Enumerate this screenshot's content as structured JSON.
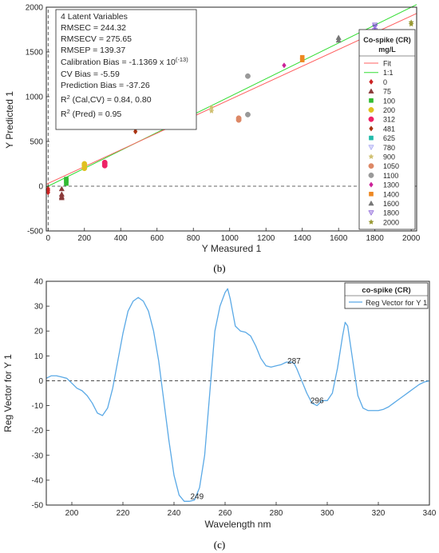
{
  "chart_data": [
    {
      "type": "scatter",
      "caption": "(b)",
      "xlabel": "Y Measured 1",
      "ylabel": "Y Predicted 1",
      "xlim": [
        -10,
        2030
      ],
      "ylim": [
        -500,
        2000
      ],
      "xticks": [
        0,
        200,
        400,
        600,
        800,
        1000,
        1200,
        1400,
        1600,
        1800,
        2000
      ],
      "yticks": [
        -500,
        0,
        500,
        1000,
        1500,
        2000
      ],
      "grid": false,
      "stats": {
        "l1": "4 Latent Variables",
        "l2": "RMSEC = 244.32",
        "l3": "RMSECV = 275.65",
        "l4": "RMSEP = 139.37",
        "l5a": "Calibration Bias = -1.1369 x 10",
        "l5b": "(-13)",
        "l6": "CV Bias = -5.59",
        "l7": "Prediction Bias = -37.26",
        "l8a": "R",
        "l8b": "2",
        "l8c": " (Cal,CV) = 0.84, 0.80",
        "l9a": "R",
        "l9b": "2",
        "l9c": " (Pred) = 0.95"
      },
      "legend": {
        "title1": "Co-spike (CR)",
        "title2": "mg/L",
        "fit_label": "Fit",
        "one_label": "1:1",
        "placement": "right"
      },
      "fit_line": {
        "x": [
          -10,
          2030
        ],
        "y": [
          22,
          1930
        ],
        "color": "#ff6060"
      },
      "one_to_one": {
        "x": [
          -10,
          2030
        ],
        "y": [
          -10,
          2030
        ],
        "color": "#33dd33"
      },
      "zero_line": {
        "y": 0,
        "style": "dashed"
      },
      "zero_vline": {
        "x": 0,
        "style": "dashed"
      },
      "series": [
        {
          "name": "0",
          "marker": "diamond",
          "color": "#cc2222",
          "points": [
            [
              0,
              -30
            ],
            [
              0,
              -50
            ],
            [
              0,
              -70
            ],
            [
              -2,
              -40
            ]
          ]
        },
        {
          "name": "75",
          "marker": "triangle-up",
          "color": "#8b3a3a",
          "points": [
            [
              75,
              -30
            ],
            [
              75,
              -90
            ],
            [
              75,
              -115
            ],
            [
              75,
              -130
            ]
          ]
        },
        {
          "name": "100",
          "marker": "square",
          "color": "#33bb33",
          "points": [
            [
              100,
              30
            ],
            [
              100,
              60
            ],
            [
              100,
              80
            ]
          ]
        },
        {
          "name": "200",
          "marker": "circle",
          "color": "#e0c020",
          "points": [
            [
              200,
              200
            ],
            [
              200,
              230
            ],
            [
              200,
              250
            ]
          ]
        },
        {
          "name": "312",
          "marker": "circle",
          "color": "#ee2266",
          "points": [
            [
              312,
              230
            ],
            [
              312,
              250
            ],
            [
              312,
              265
            ]
          ]
        },
        {
          "name": "481",
          "marker": "diamond",
          "color": "#aa3311",
          "points": [
            [
              481,
              610
            ],
            [
              481,
              640
            ],
            [
              481,
              660
            ],
            [
              481,
              680
            ]
          ]
        },
        {
          "name": "625",
          "marker": "square",
          "color": "#22bbaa",
          "points": [
            [
              625,
              660
            ],
            [
              625,
              670
            ]
          ]
        },
        {
          "name": "780",
          "marker": "triangle-down",
          "color": "#8888ee",
          "points": [
            [
              780,
              940
            ],
            [
              780,
              960
            ],
            [
              780,
              980
            ],
            [
              780,
              1000
            ],
            [
              780,
              1010
            ]
          ]
        },
        {
          "name": "900",
          "marker": "star",
          "color": "#d0c070",
          "points": [
            [
              900,
              840
            ],
            [
              900,
              880
            ]
          ]
        },
        {
          "name": "1050",
          "marker": "circle",
          "color": "#dd8866",
          "points": [
            [
              1050,
              740
            ],
            [
              1050,
              760
            ]
          ]
        },
        {
          "name": "1100",
          "marker": "circle",
          "color": "#999999",
          "points": [
            [
              1100,
              800
            ],
            [
              1100,
              1230
            ]
          ]
        },
        {
          "name": "1300",
          "marker": "diamond",
          "color": "#cc2299",
          "points": [
            [
              1300,
              1350
            ]
          ]
        },
        {
          "name": "1400",
          "marker": "square",
          "color": "#ee8822",
          "points": [
            [
              1400,
              1410
            ],
            [
              1400,
              1440
            ]
          ]
        },
        {
          "name": "1600",
          "marker": "triangle-up",
          "color": "#777777",
          "points": [
            [
              1600,
              1630
            ],
            [
              1600,
              1660
            ]
          ]
        },
        {
          "name": "1800",
          "marker": "triangle-down",
          "color": "#6633cc",
          "points": [
            [
              1800,
              1740
            ],
            [
              1800,
              1780
            ],
            [
              1800,
              1800
            ]
          ]
        },
        {
          "name": "2000",
          "marker": "star",
          "color": "#999933",
          "points": [
            [
              2000,
              1810
            ],
            [
              2000,
              1830
            ]
          ]
        }
      ]
    },
    {
      "type": "line",
      "caption": "(c)",
      "xlabel": "Wavelength nm",
      "ylabel": "Reg Vector for Y 1",
      "xlim": [
        190,
        340
      ],
      "ylim": [
        -50,
        40
      ],
      "xticks": [
        200,
        220,
        240,
        260,
        280,
        300,
        320,
        340
      ],
      "yticks": [
        -50,
        -40,
        -30,
        -20,
        -10,
        0,
        10,
        20,
        30,
        40
      ],
      "grid": false,
      "legend": {
        "title": "co-spike (CR)",
        "label": "Reg Vector for Y 1",
        "placement": "top-right"
      },
      "line_color": "#5aa9e6",
      "zero_line": {
        "y": 0,
        "style": "dashed"
      },
      "annotations": [
        {
          "text": "287",
          "x": 287,
          "y": 6
        },
        {
          "text": "296",
          "x": 296,
          "y": -10
        },
        {
          "text": "249",
          "x": 249,
          "y": -48.5
        }
      ],
      "series": [
        {
          "x": [
            190,
            192,
            194,
            196,
            198,
            200,
            202,
            204,
            206,
            208,
            210,
            212,
            214,
            216,
            218,
            220,
            222,
            224,
            226,
            228,
            230,
            232,
            234,
            236,
            238,
            240,
            242,
            244,
            246,
            248,
            250,
            252,
            254,
            256,
            258,
            260,
            261,
            262,
            264,
            266,
            268,
            270,
            272,
            274,
            276,
            278,
            280,
            282,
            284,
            286,
            287,
            288,
            290,
            292,
            294,
            296,
            298,
            300,
            302,
            304,
            306,
            307,
            308,
            310,
            312,
            314,
            316,
            318,
            320,
            322,
            324,
            326,
            328,
            330,
            332,
            334,
            336,
            338,
            340
          ],
          "y": [
            1,
            2,
            2,
            1.5,
            1,
            -1,
            -3,
            -4,
            -6,
            -9,
            -13,
            -14,
            -11,
            -3,
            8,
            19,
            28,
            32,
            33.5,
            32,
            28,
            20,
            8,
            -8,
            -24,
            -38,
            -46,
            -48.5,
            -48.5,
            -48,
            -43,
            -30,
            -5,
            20,
            30,
            35.5,
            37,
            33,
            22,
            20,
            19.5,
            18,
            14,
            9,
            6,
            5.5,
            6,
            6.5,
            7.5,
            7.5,
            7,
            5,
            0,
            -5,
            -9,
            -10,
            -8,
            -8,
            -5,
            5,
            18,
            23.5,
            22,
            8,
            -6,
            -11,
            -12,
            -12,
            -12,
            -11.5,
            -10.5,
            -9,
            -7.5,
            -6,
            -4.5,
            -3,
            -1.5,
            -0.5,
            0
          ]
        }
      ]
    }
  ]
}
